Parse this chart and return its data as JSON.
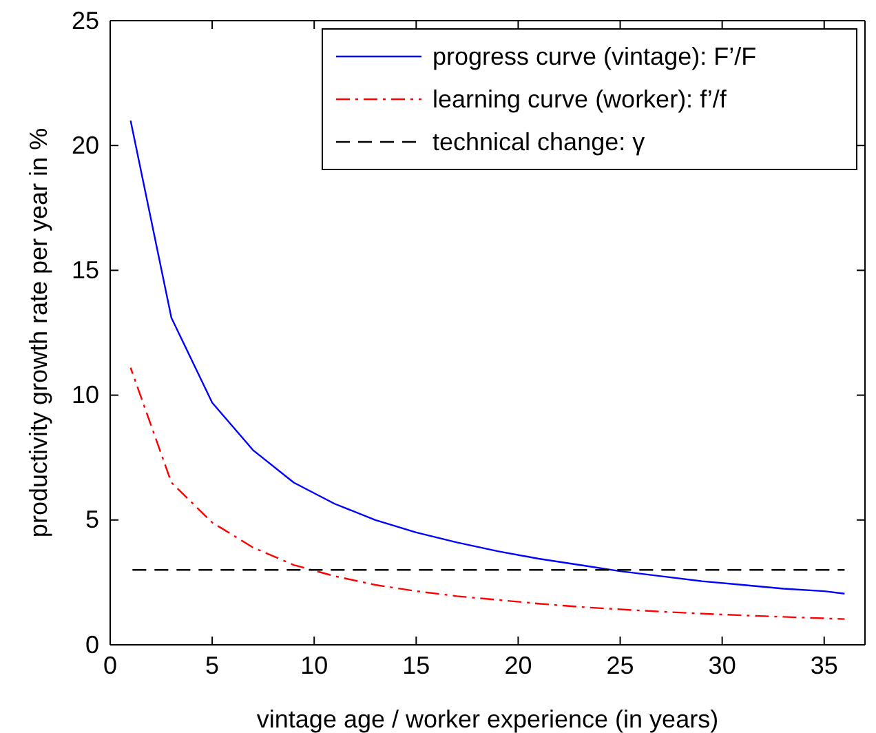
{
  "chart_data": {
    "type": "line",
    "xlabel": "vintage age / worker experience (in years)",
    "ylabel": "productivity growth rate per year in %",
    "xlim": [
      0,
      37
    ],
    "xticks": [
      0,
      5,
      10,
      15,
      20,
      25,
      30,
      35
    ],
    "ylim": [
      0,
      25
    ],
    "yticks": [
      0,
      5,
      10,
      15,
      20,
      25
    ],
    "grid": false,
    "legend": "top right",
    "marker": "none",
    "series": [
      {
        "name": "progress curve (vintage): F’/F",
        "color": "#0000ff",
        "line_style": "solid",
        "x": [
          1,
          3,
          5,
          7,
          9,
          11,
          13,
          15,
          17,
          19,
          21,
          23,
          25,
          27,
          29,
          31,
          33,
          35,
          36
        ],
        "values": [
          21,
          13.1,
          9.7,
          7.8,
          6.5,
          5.65,
          5.0,
          4.5,
          4.1,
          3.75,
          3.45,
          3.2,
          2.95,
          2.75,
          2.55,
          2.4,
          2.25,
          2.15,
          2.05
        ]
      },
      {
        "name": "learning curve (worker): f’/f",
        "color": "#ff0000",
        "line_style": "dashdot",
        "x": [
          1,
          3,
          5,
          7,
          9,
          11,
          13,
          15,
          17,
          19,
          21,
          23,
          25,
          27,
          29,
          31,
          33,
          35,
          36
        ],
        "values": [
          11.1,
          6.5,
          4.9,
          3.9,
          3.2,
          2.75,
          2.4,
          2.15,
          1.95,
          1.8,
          1.65,
          1.52,
          1.42,
          1.33,
          1.25,
          1.18,
          1.12,
          1.06,
          1.03
        ]
      },
      {
        "name": "technical change: γ",
        "color": "#000000",
        "line_style": "dashed",
        "x": [
          1,
          36
        ],
        "values": [
          3,
          3
        ]
      }
    ]
  }
}
